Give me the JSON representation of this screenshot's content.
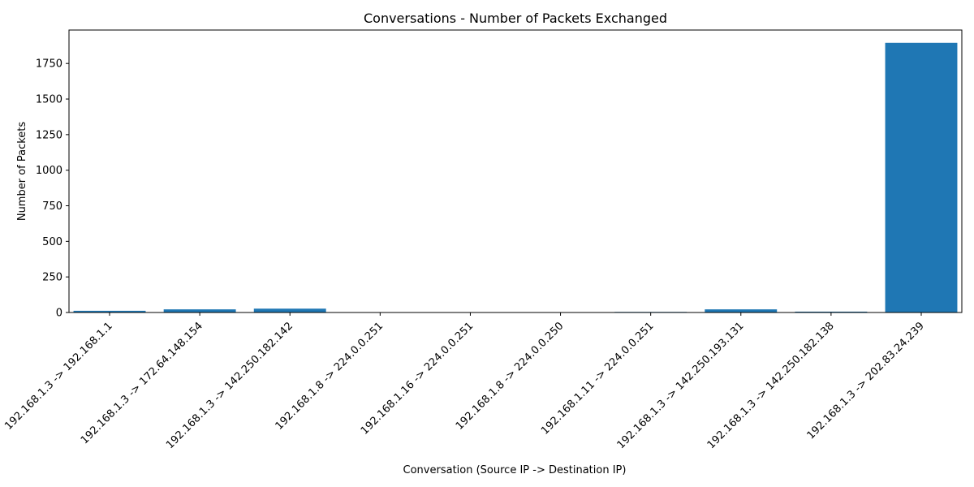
{
  "chart_data": {
    "type": "bar",
    "title": "Conversations - Number of Packets Exchanged",
    "xlabel": "Conversation (Source IP -> Destination IP)",
    "ylabel": "Number of Packets",
    "categories": [
      "192.168.1.3 -> 192.168.1.1",
      "192.168.1.3 -> 172.64.148.154",
      "192.168.1.3 -> 142.250.182.142",
      "192.168.1.8 -> 224.0.0.251",
      "192.168.1.16 -> 224.0.0.251",
      "192.168.1.8 -> 224.0.0.250",
      "192.168.1.11 -> 224.0.0.251",
      "192.168.1.3 -> 142.250.193.131",
      "192.168.1.3 -> 142.250.182.138",
      "192.168.1.3 -> 202.83.24.239"
    ],
    "values": [
      12,
      22,
      27,
      1,
      1,
      1,
      4,
      22,
      6,
      1895
    ],
    "ylim": [
      0,
      1985
    ],
    "yticks": [
      0,
      250,
      500,
      750,
      1000,
      1250,
      1500,
      1750
    ],
    "grid": false,
    "bar_color": "#1f77b4"
  }
}
